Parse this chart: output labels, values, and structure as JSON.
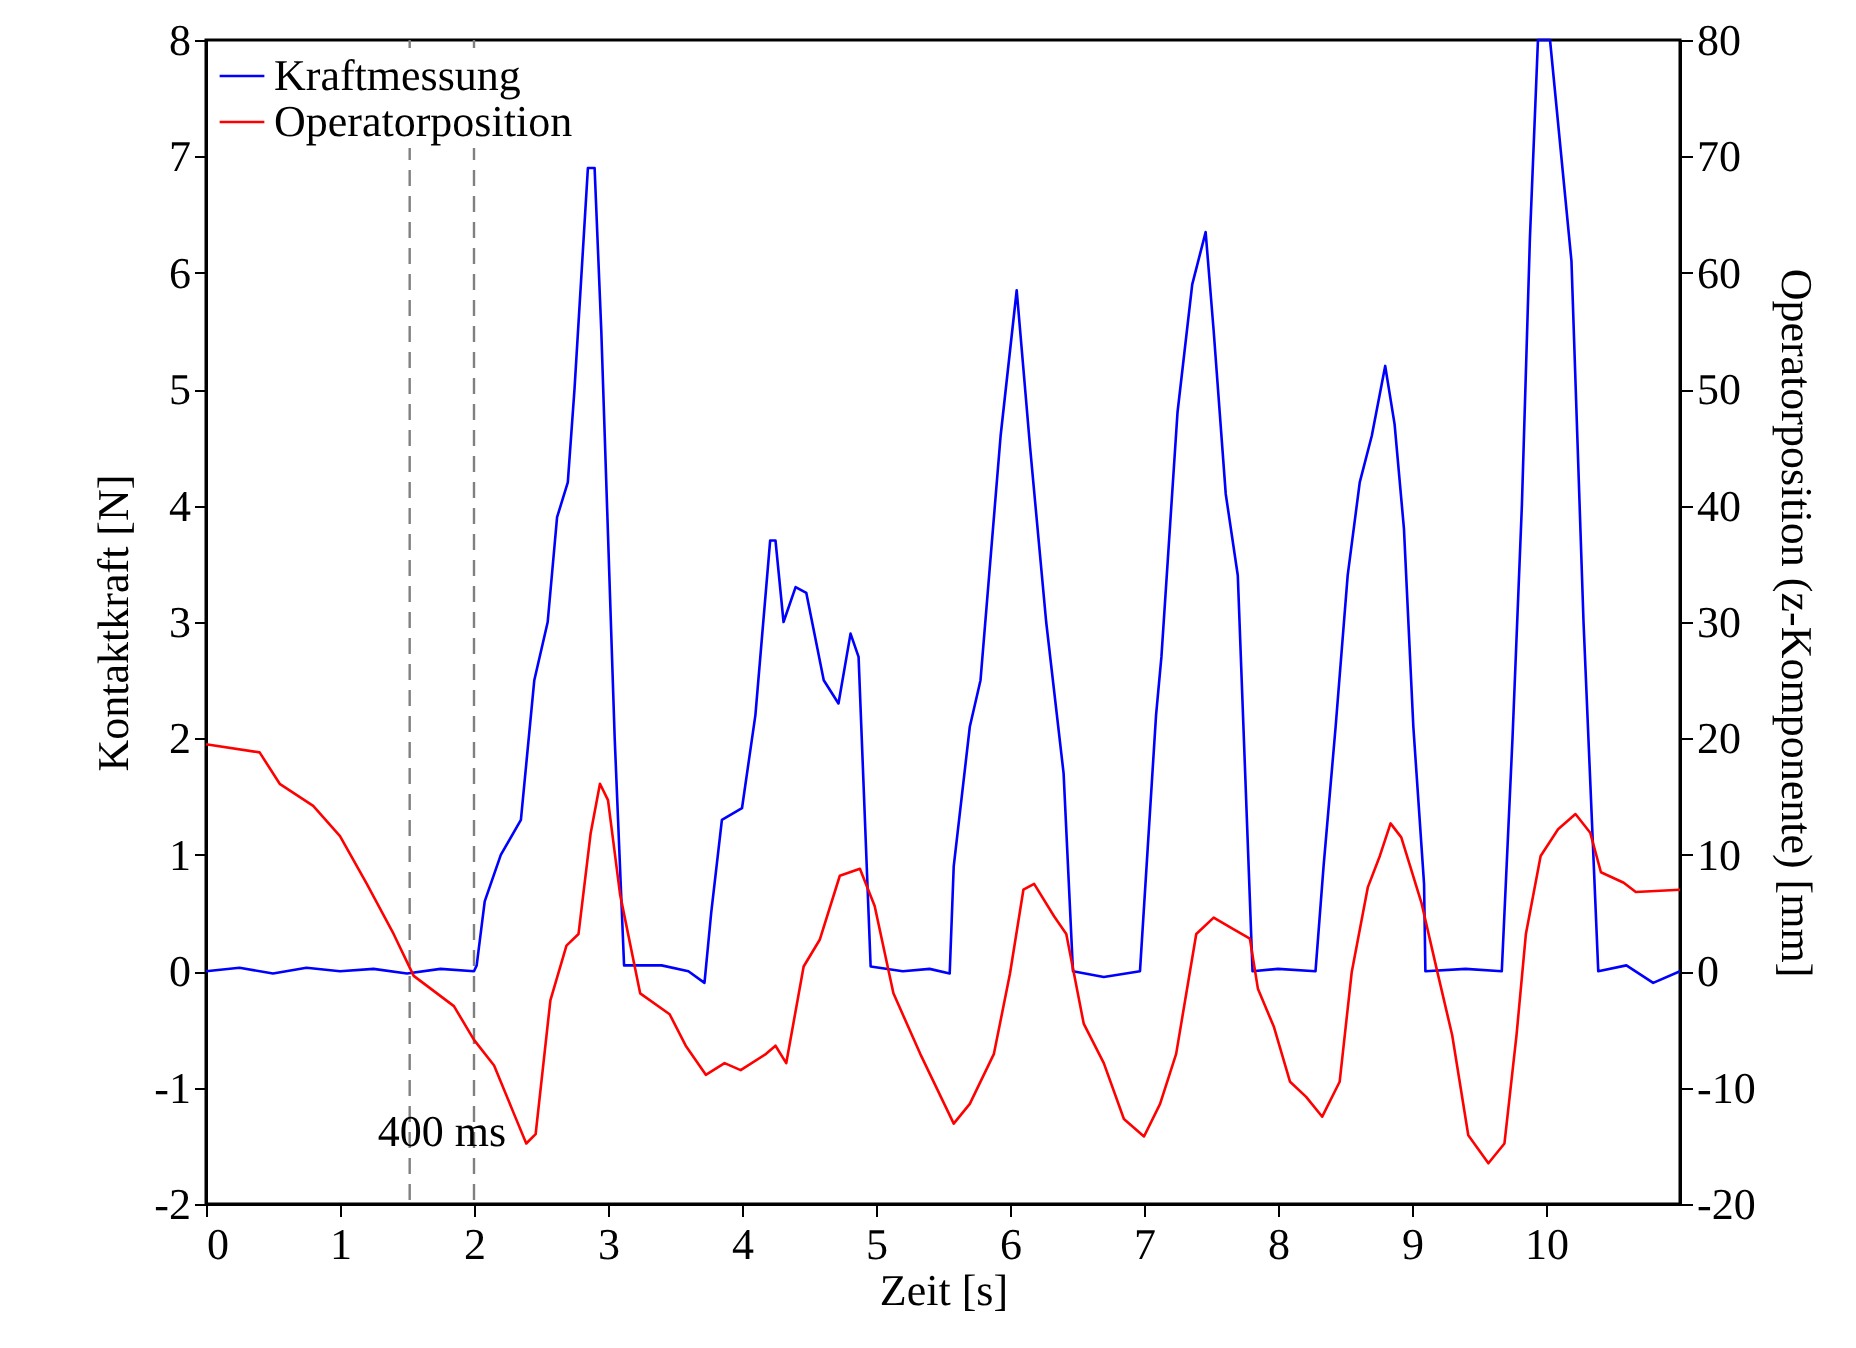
{
  "chart_data": {
    "type": "line",
    "xlabel": "Zeit [s]",
    "ylabel": "Kontaktkraft [N]",
    "y2label": "Operatorposition (z-Komponente) [mm]",
    "xlim": [
      0,
      11
    ],
    "xticks": [
      0,
      1,
      2,
      3,
      4,
      5,
      6,
      7,
      8,
      9,
      10
    ],
    "ylim": [
      -2,
      8
    ],
    "yticks": [
      -2,
      -1,
      0,
      1,
      2,
      3,
      4,
      5,
      6,
      7,
      8
    ],
    "y2lim": [
      -20,
      80
    ],
    "y2ticks": [
      -20,
      -10,
      0,
      10,
      20,
      30,
      40,
      50,
      60,
      70,
      80
    ],
    "legend": "top left",
    "grid": false,
    "line_style": "solid",
    "marker": "none",
    "series": [
      {
        "name": "Kraftmessung",
        "color": "#0000ff",
        "x": [
          0,
          0.25,
          0.5,
          0.75,
          1,
          1.25,
          1.5,
          1.75,
          2.0,
          2.02,
          2.08,
          2.2,
          2.35,
          2.45,
          2.55,
          2.62,
          2.7,
          2.75,
          2.85,
          2.9,
          2.95,
          3.05,
          3.12,
          3.4,
          3.6,
          3.72,
          3.77,
          3.85,
          4.0,
          4.1,
          4.21,
          4.25,
          4.31,
          4.4,
          4.48,
          4.61,
          4.72,
          4.81,
          4.87,
          4.96,
          5.2,
          5.4,
          5.55,
          5.58,
          5.7,
          5.78,
          5.93,
          6.05,
          6.15,
          6.27,
          6.4,
          6.47,
          6.7,
          6.97,
          7.09,
          7.13,
          7.25,
          7.36,
          7.46,
          7.52,
          7.61,
          7.7,
          7.81,
          8.0,
          8.28,
          8.34,
          8.43,
          8.52,
          8.61,
          8.7,
          8.8,
          8.87,
          8.94,
          9.01,
          9.09,
          9.1,
          9.4,
          9.67,
          9.75,
          9.82,
          9.88,
          9.94,
          10.03,
          10.19,
          10.28,
          10.39,
          10.6,
          10.8,
          11
        ],
        "values": [
          0,
          0.03,
          -0.02,
          0.03,
          0,
          0.02,
          -0.02,
          0.02,
          0,
          0.05,
          0.6,
          1.0,
          1.3,
          2.5,
          3.0,
          3.9,
          4.2,
          5.0,
          6.9,
          6.9,
          5.5,
          2.0,
          0.05,
          0.05,
          0,
          -0.1,
          0.5,
          1.3,
          1.4,
          2.2,
          3.7,
          3.7,
          3.0,
          3.3,
          3.25,
          2.5,
          2.3,
          2.9,
          2.7,
          0.04,
          0,
          0.02,
          -0.02,
          0.9,
          2.1,
          2.5,
          4.6,
          5.85,
          4.5,
          3.0,
          1.7,
          0,
          -0.05,
          0,
          2.2,
          2.7,
          4.8,
          5.9,
          6.35,
          5.5,
          4.1,
          3.4,
          0,
          0.02,
          0,
          0.9,
          2.1,
          3.4,
          4.2,
          4.6,
          5.2,
          4.7,
          3.8,
          2.1,
          0.75,
          0,
          0.02,
          0,
          2.0,
          4.0,
          6.3,
          8,
          8,
          6.1,
          3.0,
          0,
          0.05,
          -0.1,
          0
        ]
      },
      {
        "name": "Operatorposition",
        "color": "#ff0000",
        "axis": "y2",
        "x": [
          0,
          0.4,
          0.55,
          0.8,
          1.0,
          1.2,
          1.4,
          1.55,
          1.85,
          2.0,
          2.15,
          2.3,
          2.39,
          2.46,
          2.57,
          2.69,
          2.78,
          2.87,
          2.94,
          3.0,
          3.09,
          3.24,
          3.46,
          3.58,
          3.73,
          3.87,
          3.99,
          4.18,
          4.25,
          4.33,
          4.46,
          4.58,
          4.73,
          4.88,
          4.99,
          5.13,
          5.33,
          5.58,
          5.7,
          5.88,
          6.0,
          6.1,
          6.18,
          6.33,
          6.42,
          6.55,
          6.7,
          6.85,
          7.0,
          7.12,
          7.24,
          7.39,
          7.52,
          7.67,
          7.79,
          7.85,
          7.97,
          8.09,
          8.21,
          8.33,
          8.46,
          8.55,
          8.67,
          8.76,
          8.84,
          8.92,
          9.07,
          9.19,
          9.3,
          9.42,
          9.57,
          9.69,
          9.78,
          9.85,
          9.96,
          10.09,
          10.22,
          10.33,
          10.41,
          10.58,
          10.67,
          11
        ],
        "values": [
          19.5,
          18.8,
          16.1,
          14.2,
          11.6,
          7.5,
          3.2,
          -0.4,
          -3.0,
          -5.9,
          -8.1,
          -12.3,
          -14.8,
          -14.0,
          -2.5,
          2.2,
          3.2,
          11.8,
          16.1,
          14.7,
          6.6,
          -1.9,
          -3.7,
          -6.4,
          -8.9,
          -7.9,
          -8.5,
          -7.1,
          -6.4,
          -7.9,
          0.4,
          2.7,
          8.2,
          8.8,
          5.6,
          -1.9,
          -7.1,
          -13.1,
          -11.4,
          -7.1,
          -0.2,
          7.0,
          7.5,
          4.7,
          3.2,
          -4.5,
          -7.9,
          -12.7,
          -14.2,
          -11.4,
          -7.1,
          3.2,
          4.6,
          3.6,
          2.8,
          -1.5,
          -4.8,
          -9.5,
          -10.8,
          -12.5,
          -9.5,
          -0.1,
          7.2,
          9.9,
          12.7,
          11.5,
          5.9,
          -0.1,
          -5.5,
          -14.1,
          -16.5,
          -14.8,
          -5.5,
          3.2,
          9.9,
          12.2,
          13.5,
          11.9,
          8.5,
          7.6,
          6.8,
          7.0
        ]
      }
    ],
    "ref_lines": [
      {
        "axis": "x",
        "value": 1.52,
        "color": "#808080",
        "line_style": "dashed"
      },
      {
        "axis": "x",
        "value": 2.0,
        "color": "#808080",
        "line_style": "dashed"
      }
    ],
    "annotations": [
      "400 ms"
    ]
  }
}
